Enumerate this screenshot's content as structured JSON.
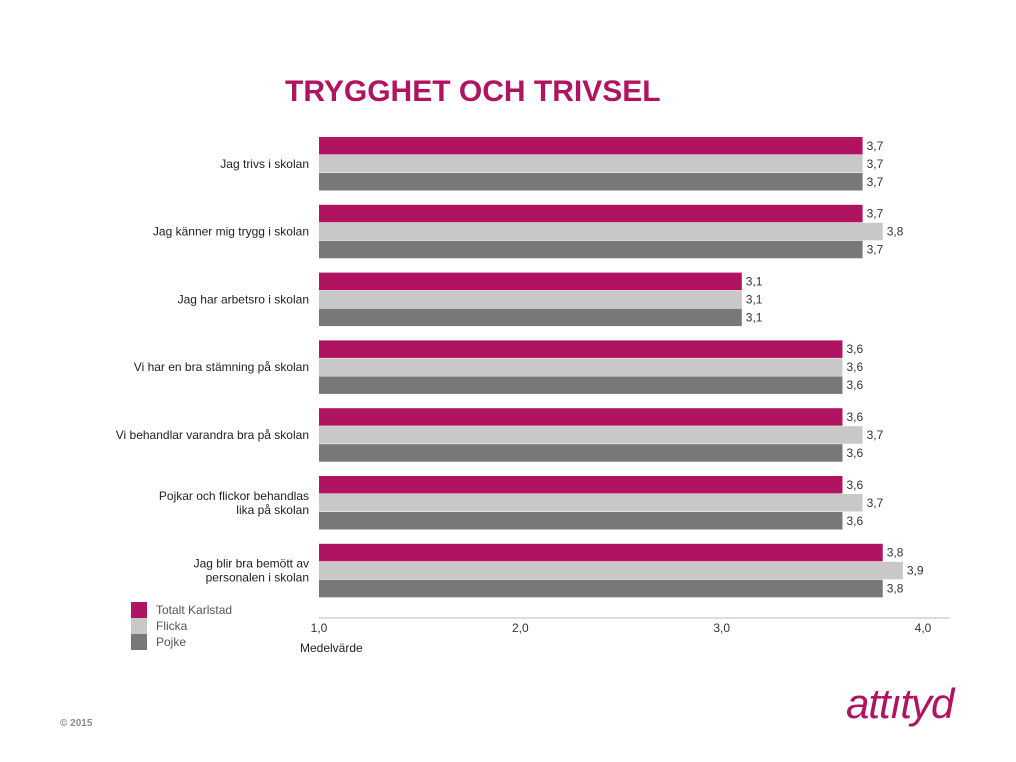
{
  "chart_data": {
    "type": "bar",
    "orientation": "horizontal",
    "title": "TRYGGHET OCH TRIVSEL",
    "xlabel": "Medelvärde",
    "ylabel": "",
    "xlim": [
      1.0,
      4.0
    ],
    "xticks": [
      "1,0",
      "2,0",
      "3,0",
      "4,0"
    ],
    "grid": false,
    "legend_position": "bottom-left",
    "categories": [
      "Jag trivs i skolan",
      "Jag känner mig trygg i skolan",
      "Jag har arbetsro i skolan",
      "Vi har en bra stämning på skolan",
      "Vi behandlar varandra bra på skolan",
      "Pojkar och flickor behandlas lika på skolan",
      "Jag blir bra bemött av personalen i skolan"
    ],
    "category_lines": [
      [
        "Jag trivs i skolan"
      ],
      [
        "Jag känner mig trygg i skolan"
      ],
      [
        "Jag har arbetsro i skolan"
      ],
      [
        "Vi har en bra stämning på skolan"
      ],
      [
        "Vi behandlar varandra bra på skolan"
      ],
      [
        "Pojkar och flickor behandlas",
        "lika på skolan"
      ],
      [
        "Jag blir bra bemött av",
        "personalen i skolan"
      ]
    ],
    "series": [
      {
        "name": "Totalt Karlstad",
        "color": "#b0135f",
        "values": [
          3.7,
          3.7,
          3.1,
          3.6,
          3.6,
          3.6,
          3.8
        ],
        "labels": [
          "3,7",
          "3,7",
          "3,1",
          "3,6",
          "3,6",
          "3,6",
          "3,8"
        ]
      },
      {
        "name": "Flicka",
        "color": "#c8c8c8",
        "values": [
          3.7,
          3.8,
          3.1,
          3.6,
          3.7,
          3.7,
          3.9
        ],
        "labels": [
          "3,7",
          "3,8",
          "3,1",
          "3,6",
          "3,7",
          "3,7",
          "3,9"
        ]
      },
      {
        "name": "Pojke",
        "color": "#787878",
        "values": [
          3.7,
          3.7,
          3.1,
          3.6,
          3.6,
          3.6,
          3.8
        ],
        "labels": [
          "3,7",
          "3,7",
          "3,1",
          "3,6",
          "3,6",
          "3,6",
          "3,8"
        ]
      }
    ],
    "title_color": "#b0135f"
  },
  "footer": {
    "copyright": "© 2015",
    "logo_text": "attıtyd"
  }
}
